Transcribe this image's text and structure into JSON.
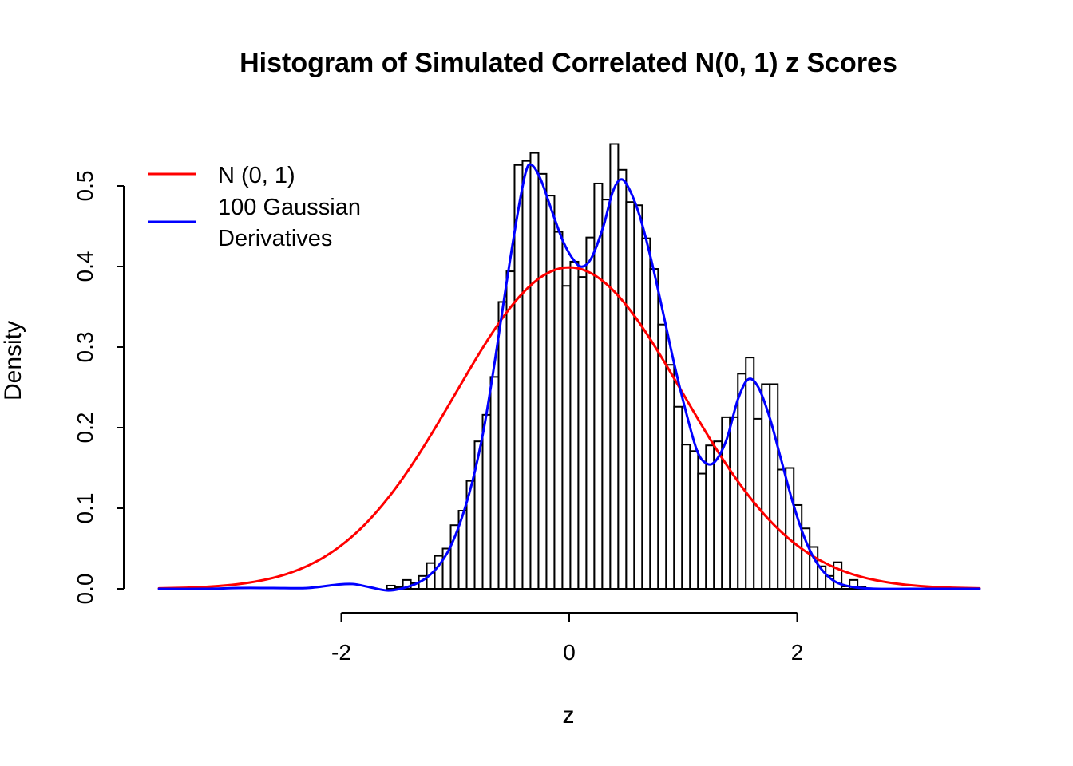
{
  "title": "Histogram of Simulated Correlated N(0, 1) z Scores",
  "chart_data": {
    "type": "histogram",
    "title": "Histogram of Simulated Correlated N(0, 1) z Scores",
    "xlabel": "z",
    "ylabel": "Density",
    "xlim": [
      -3.6,
      3.6
    ],
    "ylim": [
      0.0,
      0.5
    ],
    "grid": false,
    "background": "#FFFFFF",
    "x_ticks": {
      "values": [
        -2,
        0,
        2
      ],
      "labels": [
        "-2",
        "0",
        "2"
      ]
    },
    "y_ticks": {
      "values": [
        0.0,
        0.1,
        0.2,
        0.3,
        0.4,
        0.5
      ],
      "labels": [
        "0.0",
        "0.1",
        "0.2",
        "0.3",
        "0.4",
        "0.5"
      ]
    },
    "histogram": {
      "label": "Simulated correlated N(0,1) z scores",
      "bin_start": -1.6,
      "bin_width": 0.07,
      "fill": "#FFFFFF",
      "stroke": "#000000",
      "densities": [
        0.004,
        0.002,
        0.011,
        0.007,
        0.016,
        0.032,
        0.041,
        0.05,
        0.079,
        0.097,
        0.134,
        0.183,
        0.216,
        0.263,
        0.356,
        0.394,
        0.526,
        0.531,
        0.541,
        0.515,
        0.488,
        0.443,
        0.376,
        0.406,
        0.387,
        0.436,
        0.503,
        0.483,
        0.552,
        0.52,
        0.48,
        0.476,
        0.435,
        0.397,
        0.328,
        0.278,
        0.226,
        0.179,
        0.171,
        0.143,
        0.178,
        0.183,
        0.213,
        0.213,
        0.267,
        0.287,
        0.211,
        0.254,
        0.254,
        0.148,
        0.15,
        0.104,
        0.075,
        0.052,
        0.028,
        0.016,
        0.033,
        0.003,
        0.011,
        0.002
      ]
    },
    "curves": [
      {
        "name": "N (0, 1)",
        "legend_lines": [
          "N (0, 1)"
        ],
        "color": "#FF0000",
        "kind": "normal_pdf",
        "mean": 0,
        "sd": 1
      },
      {
        "name": "100 Gaussian Derivatives",
        "legend_lines": [
          "100 Gaussian",
          "Derivatives"
        ],
        "color": "#0000FF",
        "kind": "points",
        "points": [
          [
            -3.6,
            0.0
          ],
          [
            -3.2,
            0.0
          ],
          [
            -2.9,
            0.001
          ],
          [
            -2.6,
            0.001
          ],
          [
            -2.3,
            0.001
          ],
          [
            -2.05,
            0.005
          ],
          [
            -1.9,
            0.006
          ],
          [
            -1.75,
            0.002
          ],
          [
            -1.6,
            -0.002
          ],
          [
            -1.48,
            0.0
          ],
          [
            -1.35,
            0.006
          ],
          [
            -1.25,
            0.014
          ],
          [
            -1.15,
            0.028
          ],
          [
            -1.05,
            0.05
          ],
          [
            -0.95,
            0.085
          ],
          [
            -0.85,
            0.133
          ],
          [
            -0.75,
            0.198
          ],
          [
            -0.65,
            0.285
          ],
          [
            -0.55,
            0.38
          ],
          [
            -0.45,
            0.468
          ],
          [
            -0.38,
            0.518
          ],
          [
            -0.33,
            0.526
          ],
          [
            -0.25,
            0.508
          ],
          [
            -0.15,
            0.468
          ],
          [
            -0.05,
            0.43
          ],
          [
            0.05,
            0.406
          ],
          [
            0.12,
            0.4
          ],
          [
            0.2,
            0.412
          ],
          [
            0.3,
            0.45
          ],
          [
            0.38,
            0.492
          ],
          [
            0.45,
            0.508
          ],
          [
            0.52,
            0.498
          ],
          [
            0.62,
            0.462
          ],
          [
            0.72,
            0.408
          ],
          [
            0.82,
            0.345
          ],
          [
            0.92,
            0.28
          ],
          [
            1.02,
            0.222
          ],
          [
            1.12,
            0.172
          ],
          [
            1.2,
            0.156
          ],
          [
            1.28,
            0.158
          ],
          [
            1.38,
            0.185
          ],
          [
            1.48,
            0.235
          ],
          [
            1.57,
            0.26
          ],
          [
            1.66,
            0.25
          ],
          [
            1.76,
            0.212
          ],
          [
            1.86,
            0.16
          ],
          [
            1.96,
            0.108
          ],
          [
            2.06,
            0.065
          ],
          [
            2.16,
            0.035
          ],
          [
            2.26,
            0.017
          ],
          [
            2.36,
            0.007
          ],
          [
            2.5,
            0.002
          ],
          [
            2.7,
            0.0
          ],
          [
            3.0,
            0.0
          ],
          [
            3.3,
            0.0
          ],
          [
            3.6,
            0.0
          ]
        ]
      }
    ],
    "legend": {
      "position": "top-left",
      "box": false
    }
  }
}
